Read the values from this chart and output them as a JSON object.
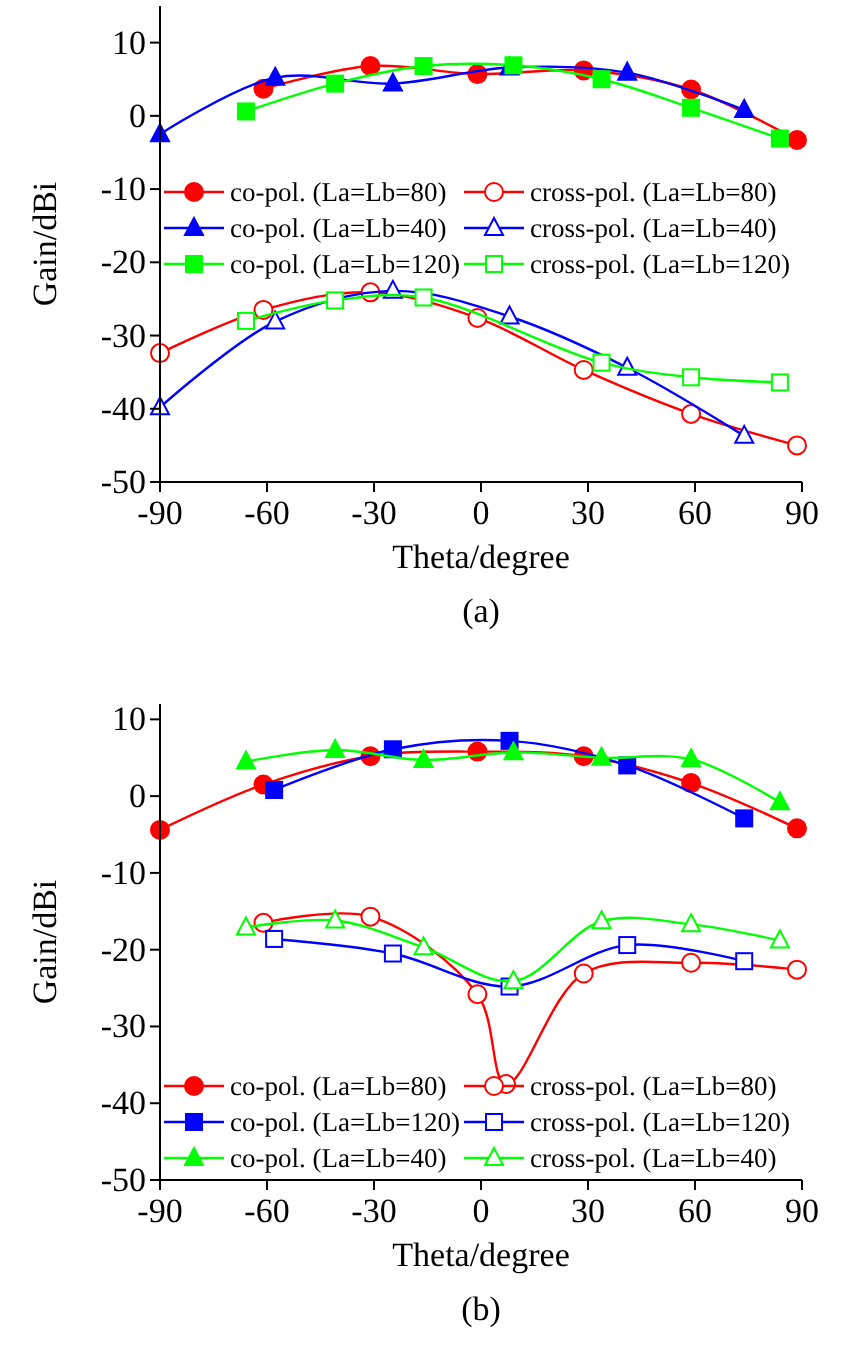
{
  "chart_data": [
    {
      "type": "line",
      "xlabel": "Theta/degree",
      "ylabel": "Gain/dBi",
      "annotations": [
        "(a)"
      ],
      "xlim": [
        -90,
        90
      ],
      "ylim": [
        -50,
        15
      ],
      "xticks": [
        -90,
        -60,
        -30,
        0,
        30,
        60,
        90
      ],
      "yticks": [
        -50,
        -40,
        -30,
        -20,
        -10,
        0,
        10
      ],
      "legend": "center left",
      "series": [
        {
          "name": "co-pol. (La=Lb=80)",
          "color": "#ff0000",
          "marker": "circle",
          "x": [
            -61,
            -31,
            -1,
            28.8,
            58.9,
            88.6
          ],
          "values": [
            3.7,
            6.8,
            5.7,
            6.2,
            3.6,
            -3.3
          ]
        },
        {
          "name": "cross-pol. (La=Lb=80)",
          "color": "#ff0000",
          "marker": "circle",
          "x": [
            -90,
            -61,
            -31,
            -1,
            28.8,
            58.9,
            88.6
          ],
          "values": [
            -32.4,
            -26.5,
            -24.1,
            -27.6,
            -34.7,
            -40.7,
            -45
          ]
        },
        {
          "name": "co-pol. (La=Lb=40)",
          "color": "#0000ff",
          "marker": "triangle",
          "x": [
            -90,
            -57.7,
            -24.7,
            8,
            41,
            73.8
          ],
          "values": [
            -2.5,
            5.2,
            4.4,
            6.6,
            5.9,
            0.8
          ]
        },
        {
          "name": "cross-pol. (La=Lb=40)",
          "color": "#0000ff",
          "marker": "triangle",
          "x": [
            -90,
            -57.7,
            -24.7,
            8,
            41,
            73.8
          ],
          "values": [
            -39.8,
            -28.1,
            -23.9,
            -27.4,
            -34.4,
            -43.7
          ]
        },
        {
          "name": "co-pol. (La=Lb=120)",
          "color": "#00ff00",
          "marker": "square",
          "x": [
            -65.9,
            -40.9,
            -16.1,
            9.1,
            33.8,
            58.9,
            83.8
          ],
          "values": [
            0.6,
            4.4,
            6.8,
            6.9,
            5,
            1.1,
            -3.1
          ]
        },
        {
          "name": "cross-pol. (La=Lb=120)",
          "color": "#00ff00",
          "marker": "square",
          "x": [
            -65.9,
            -40.9,
            -16.1,
            33.8,
            58.9,
            83.8
          ],
          "values": [
            -28,
            -25.2,
            -24.8,
            -33.7,
            -35.7,
            -36.4
          ]
        }
      ]
    },
    {
      "type": "line",
      "xlabel": "Theta/degree",
      "ylabel": "Gain/dBi",
      "annotations": [
        "(b)"
      ],
      "xlim": [
        -90,
        90
      ],
      "ylim": [
        -50,
        12
      ],
      "xticks": [
        -90,
        -60,
        -30,
        0,
        30,
        60,
        90
      ],
      "yticks": [
        -50,
        -40,
        -30,
        -20,
        -10,
        0,
        10
      ],
      "legend": "bottom left",
      "series": [
        {
          "name": "co-pol. (La=Lb=80)",
          "color": "#ff0000",
          "marker": "circle",
          "x": [
            -90,
            -61,
            -31,
            -1,
            28.8,
            58.9,
            88.6
          ],
          "values": [
            -4.4,
            1.5,
            5.2,
            5.8,
            5.2,
            1.7,
            -4.2
          ]
        },
        {
          "name": "cross-pol. (La=Lb=80)",
          "color": "#ff0000",
          "marker": "circle",
          "x": [
            -61,
            -31,
            -1,
            7,
            28.8,
            58.9,
            88.6
          ],
          "values": [
            -16.5,
            -15.7,
            -25.8,
            -37.5,
            -23.1,
            -21.7,
            -22.6
          ]
        },
        {
          "name": "co-pol. (La=Lb=120)",
          "color": "#0000ff",
          "marker": "square",
          "x": [
            -58,
            -24.7,
            8,
            41,
            73.8
          ],
          "values": [
            0.8,
            6.1,
            7.2,
            4,
            -2.9
          ]
        },
        {
          "name": "cross-pol. (La=Lb=120)",
          "color": "#0000ff",
          "marker": "square",
          "x": [
            -58,
            -24.7,
            8,
            41,
            73.8
          ],
          "values": [
            -18.6,
            -20.5,
            -24.8,
            -19.4,
            -21.5
          ]
        },
        {
          "name": "co-pol. (La=Lb=40)",
          "color": "#00ff00",
          "marker": "triangle",
          "x": [
            -65.9,
            -40.9,
            -16.1,
            9.1,
            33.8,
            58.9,
            83.8
          ],
          "values": [
            4.5,
            6,
            4.7,
            5.7,
            5,
            4.8,
            -0.8
          ]
        },
        {
          "name": "cross-pol. (La=Lb=40)",
          "color": "#00ff00",
          "marker": "triangle",
          "x": [
            -65.9,
            -40.9,
            -16.1,
            9.1,
            33.8,
            58.9,
            83.8
          ],
          "values": [
            -17.1,
            -16.2,
            -19.7,
            -24.1,
            -16.3,
            -16.7,
            -18.8
          ]
        }
      ]
    }
  ]
}
